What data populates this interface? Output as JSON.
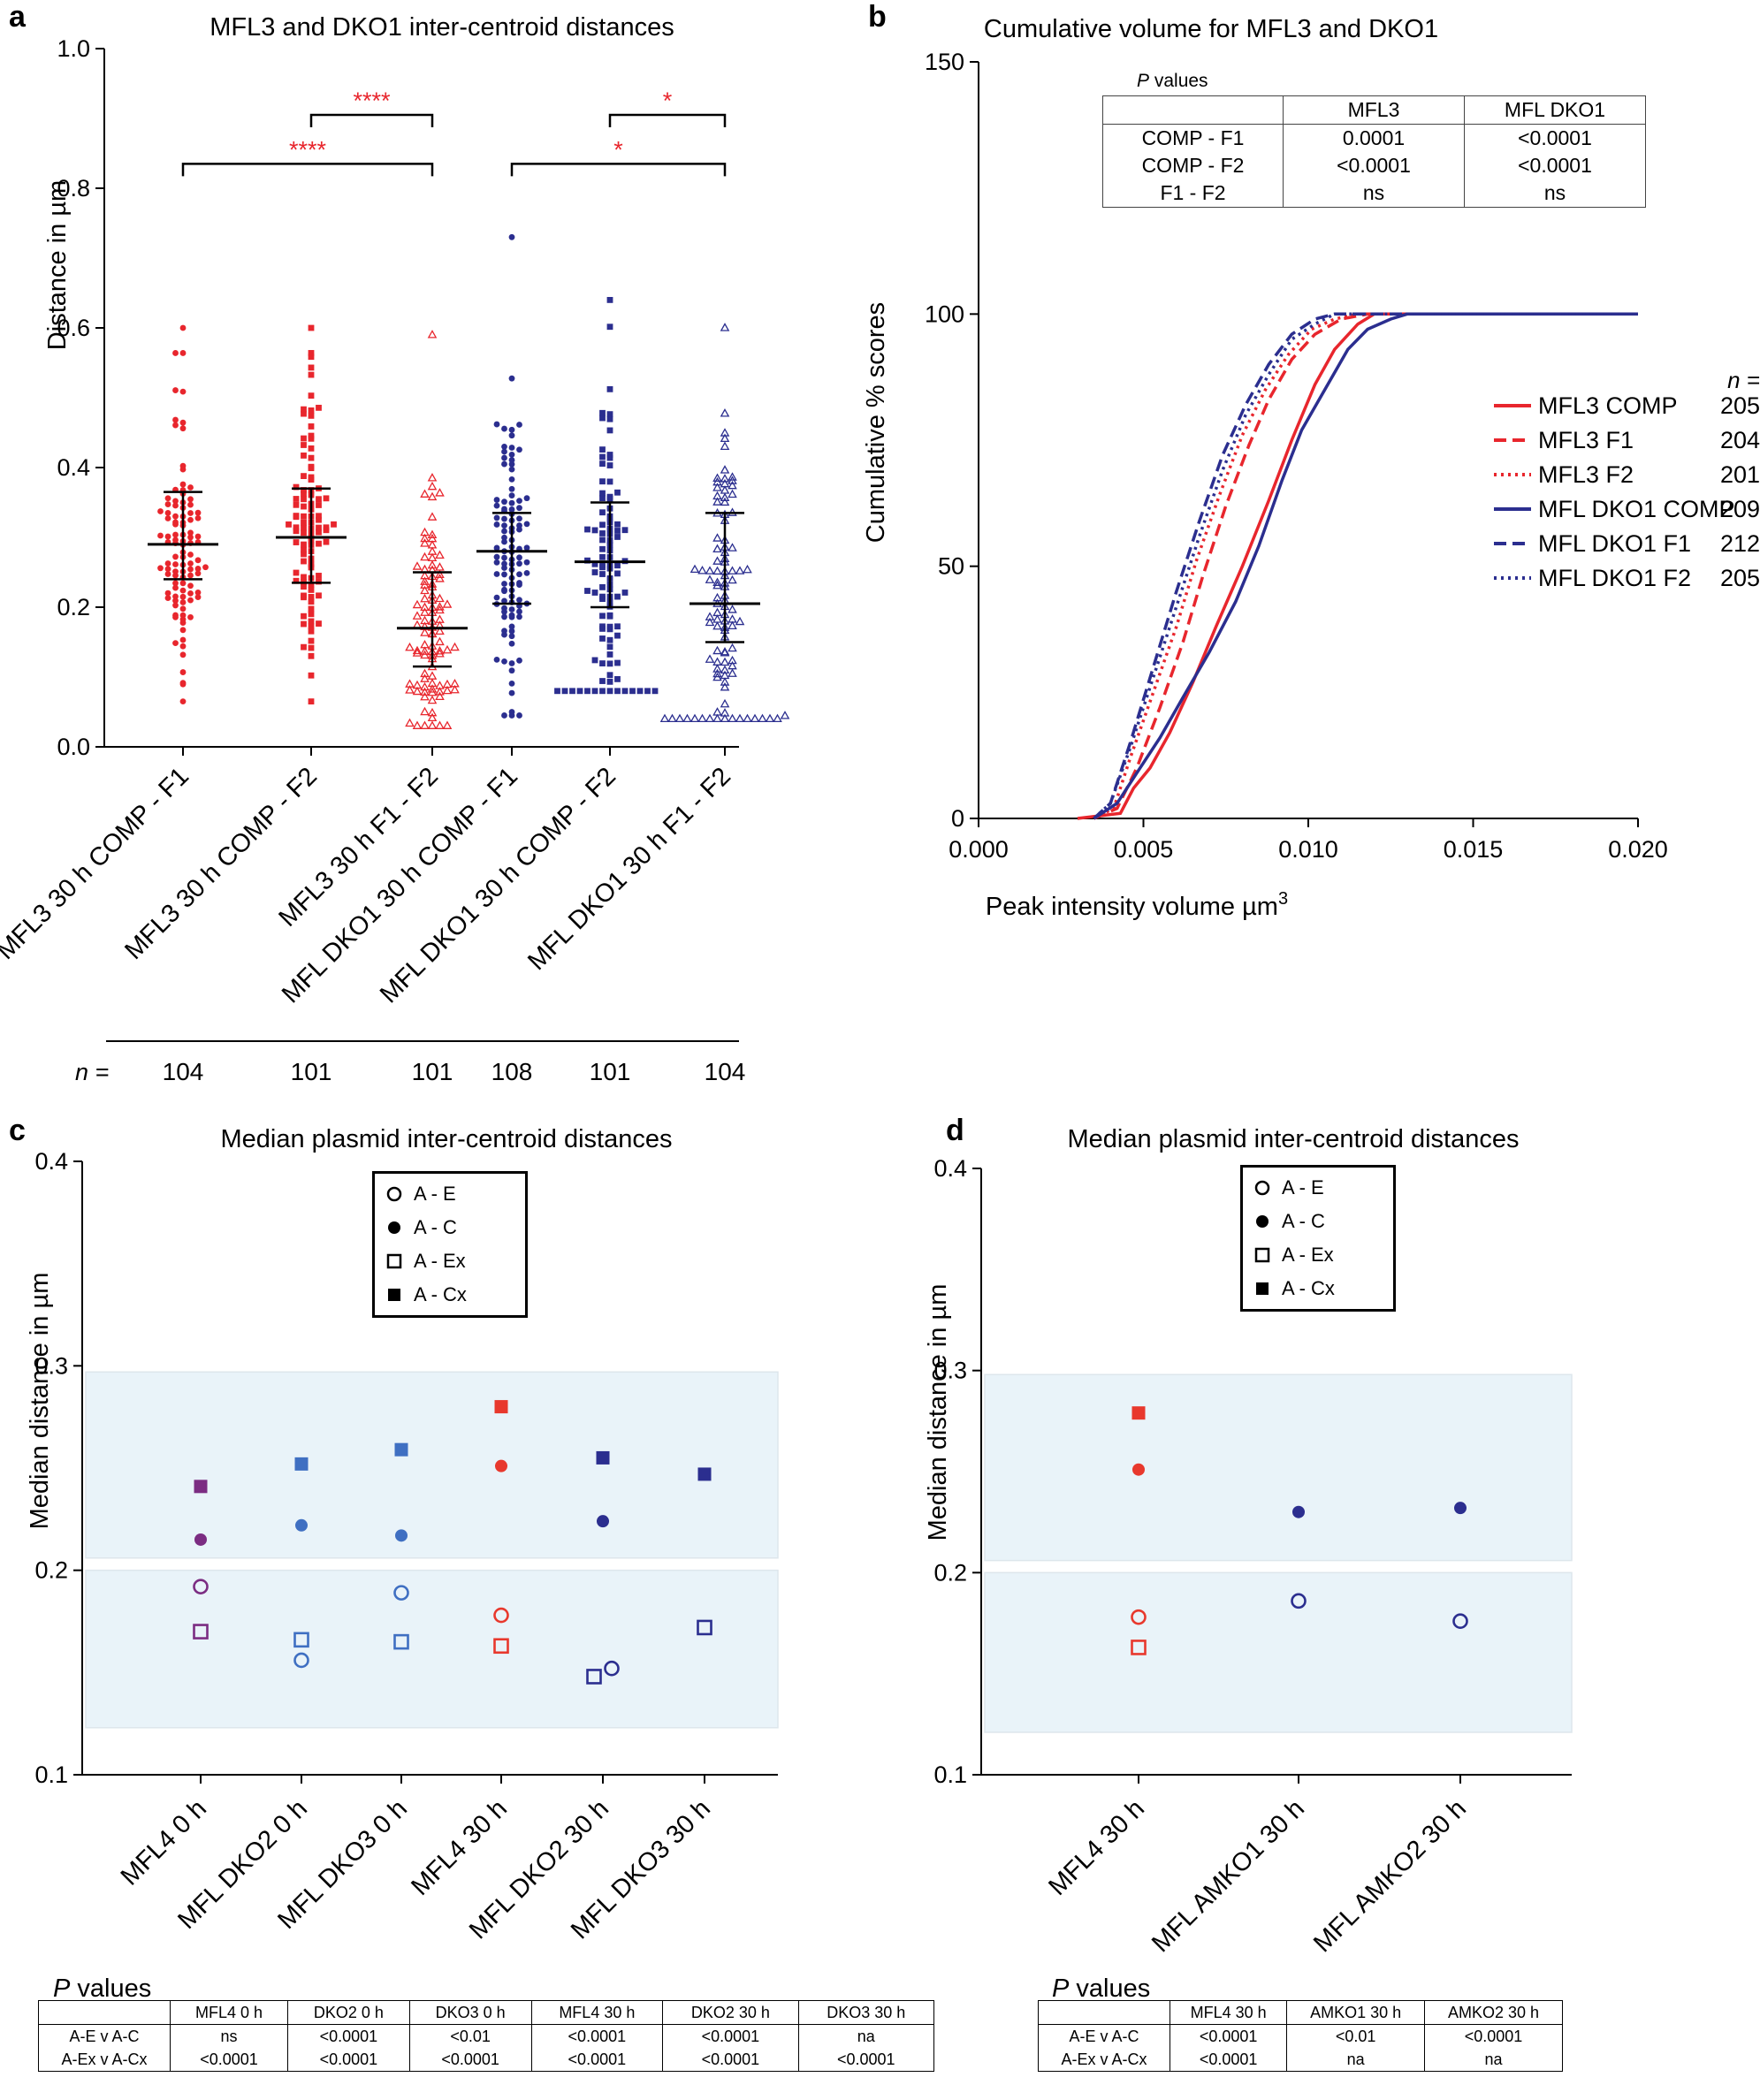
{
  "panel_a": {
    "letter": "a",
    "chart_data": {
      "type": "scatter",
      "title": "MFL3 and DKO1 inter-centroid distances",
      "ylabel": "Distance in µm",
      "ylim": [
        0.0,
        1.0
      ],
      "yticks": [
        "0.0",
        "0.2",
        "0.4",
        "0.6",
        "0.8",
        "1.0"
      ],
      "categories": [
        "MFL3 30 h COMP - F1",
        "MFL3 30 h COMP - F2",
        "MFL3 30 h F1 - F2",
        "MFL DKO1 30 h COMP - F1",
        "MFL DKO1 30 h COMP - F2",
        "MFL DKO1 30 h F1 - F2"
      ],
      "n_label": "n =",
      "n_values": [
        "104",
        "101",
        "101",
        "108",
        "101",
        "104"
      ],
      "colors": [
        "#e8262d",
        "#e8262d",
        "#e8262d",
        "#2b2e8f",
        "#2b2e8f",
        "#2b2e8f"
      ],
      "markers": [
        "circle",
        "square",
        "triangle-open",
        "circle",
        "square",
        "triangle-open"
      ],
      "stats": [
        {
          "median": 0.29,
          "q1": 0.24,
          "q3": 0.365,
          "min": 0.065,
          "max": 0.6
        },
        {
          "median": 0.3,
          "q1": 0.235,
          "q3": 0.37,
          "min": 0.065,
          "max": 0.6
        },
        {
          "median": 0.17,
          "q1": 0.115,
          "q3": 0.25,
          "min": 0.03,
          "max": 0.59
        },
        {
          "median": 0.28,
          "q1": 0.205,
          "q3": 0.335,
          "min": 0.045,
          "max": 0.73
        },
        {
          "median": 0.265,
          "q1": 0.2,
          "q3": 0.35,
          "min": 0.08,
          "max": 0.64
        },
        {
          "median": 0.205,
          "q1": 0.15,
          "q3": 0.335,
          "min": 0.04,
          "max": 0.6
        }
      ],
      "significance": [
        {
          "from": 1,
          "to": 2,
          "y": 0.905,
          "label": "****"
        },
        {
          "from": 0,
          "to": 2,
          "y": 0.835,
          "label": "****"
        },
        {
          "from": 4,
          "to": 5,
          "y": 0.905,
          "label": "*"
        },
        {
          "from": 3,
          "to": 5,
          "y": 0.835,
          "label": "*"
        }
      ]
    }
  },
  "panel_b": {
    "letter": "b",
    "chart_data": {
      "type": "line",
      "title": "Cumulative volume for MFL3 and DKO1",
      "xlabel": "Peak intensity volume µm",
      "xlabel_sup": "3",
      "ylabel": "Cumulative % scores",
      "xlim": [
        0.0,
        0.02
      ],
      "ylim": [
        0,
        150
      ],
      "xticks": [
        "0.000",
        "0.005",
        "0.010",
        "0.015",
        "0.020"
      ],
      "yticks": [
        "0",
        "50",
        "100",
        "150"
      ],
      "n_label": "n =",
      "series": [
        {
          "name": "MFL3 COMP",
          "n": "205",
          "color": "#e8262d",
          "dash": "solid",
          "x": [
            0.003,
            0.0043,
            0.0047,
            0.0052,
            0.0058,
            0.0065,
            0.0072,
            0.008,
            0.0088,
            0.0095,
            0.0102,
            0.0108,
            0.0115,
            0.012,
            0.02
          ],
          "y": [
            0,
            1,
            6,
            10,
            17,
            27,
            38,
            50,
            63,
            75,
            86,
            93,
            98,
            100,
            100
          ]
        },
        {
          "name": "MFL3 F1",
          "n": "204",
          "color": "#e8262d",
          "dash": "dash",
          "x": [
            0.0035,
            0.0042,
            0.0048,
            0.0055,
            0.0062,
            0.0068,
            0.0075,
            0.0082,
            0.0088,
            0.0095,
            0.0102,
            0.011,
            0.0118,
            0.02
          ],
          "y": [
            0,
            2,
            10,
            22,
            35,
            48,
            62,
            74,
            83,
            91,
            96,
            99,
            100,
            100
          ]
        },
        {
          "name": "MFL3 F2",
          "n": "201",
          "color": "#e8262d",
          "dash": "dot",
          "x": [
            0.0035,
            0.0041,
            0.0046,
            0.0053,
            0.006,
            0.0066,
            0.0073,
            0.008,
            0.0087,
            0.0094,
            0.0101,
            0.0108,
            0.0115,
            0.02
          ],
          "y": [
            0,
            2,
            12,
            25,
            38,
            51,
            64,
            76,
            85,
            92,
            97,
            99,
            100,
            100
          ]
        },
        {
          "name": "MFL DKO1 COMP",
          "n": "209",
          "color": "#2b2e8f",
          "dash": "solid",
          "x": [
            0.0035,
            0.0042,
            0.0048,
            0.0055,
            0.0062,
            0.007,
            0.0078,
            0.0085,
            0.0092,
            0.0098,
            0.0105,
            0.0112,
            0.0118,
            0.0125,
            0.013,
            0.02
          ],
          "y": [
            0,
            3,
            9,
            16,
            24,
            33,
            43,
            54,
            67,
            77,
            85,
            93,
            97,
            99,
            100,
            100
          ]
        },
        {
          "name": "MFL DKO1 F1",
          "n": "212",
          "color": "#2b2e8f",
          "dash": "dash",
          "x": [
            0.0035,
            0.004,
            0.0046,
            0.0053,
            0.006,
            0.0067,
            0.0074,
            0.0081,
            0.0088,
            0.0095,
            0.0102,
            0.0108,
            0.0115,
            0.02
          ],
          "y": [
            0,
            3,
            15,
            30,
            45,
            59,
            72,
            82,
            90,
            96,
            99,
            100,
            100,
            100
          ]
        },
        {
          "name": "MFL DKO1 F2",
          "n": "205",
          "color": "#2b2e8f",
          "dash": "dot",
          "x": [
            0.0035,
            0.004,
            0.0046,
            0.0053,
            0.006,
            0.0067,
            0.0074,
            0.0081,
            0.0088,
            0.0095,
            0.0102,
            0.0108,
            0.0115,
            0.02
          ],
          "y": [
            0,
            3,
            14,
            28,
            42,
            56,
            69,
            80,
            88,
            95,
            98,
            100,
            100,
            100
          ]
        }
      ]
    },
    "p_table": {
      "title": "P values",
      "title_italic": "P",
      "title_rest": " values",
      "col_headers": [
        "MFL3",
        "MFL DKO1"
      ],
      "row_labels": [
        "COMP - F1",
        "COMP - F2",
        "F1 - F2"
      ],
      "mfl3": [
        "0.0001",
        "<0.0001",
        "ns"
      ],
      "dko1": [
        "<0.0001",
        "<0.0001",
        "ns"
      ]
    }
  },
  "panel_c": {
    "letter": "c",
    "chart_data": {
      "type": "scatter",
      "title": "Median plasmid inter-centroid distances",
      "ylabel": "Median distance in µm",
      "ylim": [
        0.1,
        0.4
      ],
      "yticks": [
        "0.1",
        "0.2",
        "0.3",
        "0.4"
      ],
      "categories": [
        "MFL4 0 h",
        "MFL DKO2 0 h",
        "MFL DKO3 0 h",
        "MFL4 30 h",
        "MFL DKO2 30 h",
        "MFL DKO3 30 h"
      ],
      "colors": [
        "#7b2c82",
        "#3f6fc2",
        "#3f6fc2",
        "#e8382d",
        "#2b2e8f",
        "#2b2e8f"
      ],
      "shaded_bands": [
        [
          0.123,
          0.2
        ],
        [
          0.206,
          0.297
        ]
      ],
      "band_color": "#e9f3f9",
      "series": [
        {
          "name": "A - E",
          "marker": "circle-open",
          "values": [
            0.192,
            0.156,
            0.189,
            0.178,
            0.152,
            null
          ],
          "x_offset": [
            0,
            0,
            0,
            0,
            0.1,
            0
          ]
        },
        {
          "name": "A - C",
          "marker": "circle",
          "values": [
            0.215,
            0.222,
            0.217,
            0.251,
            0.224,
            null
          ],
          "x_offset": [
            0,
            0,
            0,
            0,
            0,
            0
          ]
        },
        {
          "name": "A - Ex",
          "marker": "square-open",
          "values": [
            0.17,
            0.166,
            0.165,
            0.163,
            0.148,
            0.172
          ],
          "x_offset": [
            0,
            0,
            0,
            0,
            -0.1,
            0
          ]
        },
        {
          "name": "A - Cx",
          "marker": "square",
          "values": [
            0.241,
            0.252,
            0.259,
            0.28,
            0.255,
            0.247
          ],
          "x_offset": [
            0,
            0,
            0,
            0,
            0,
            0
          ]
        }
      ]
    },
    "p_table": {
      "title_italic": "P",
      "title_rest": " values",
      "col_headers": [
        "MFL4 0 h",
        "DKO2 0 h",
        "DKO3 0 h",
        "MFL4 30 h",
        "DKO2 30 h",
        "DKO3 30 h"
      ],
      "row_labels": [
        "A-E v A-C",
        "A-Ex v A-Cx"
      ],
      "row1": [
        "ns",
        "<0.0001",
        "<0.01",
        "<0.0001",
        "<0.0001",
        "na"
      ],
      "row2": [
        "<0.0001",
        "<0.0001",
        "<0.0001",
        "<0.0001",
        "<0.0001",
        "<0.0001"
      ]
    }
  },
  "panel_d": {
    "letter": "d",
    "chart_data": {
      "type": "scatter",
      "title": "Median plasmid inter-centroid distances",
      "ylabel": "Median distance in µm",
      "ylim": [
        0.1,
        0.4
      ],
      "yticks": [
        "0.1",
        "0.2",
        "0.3",
        "0.4"
      ],
      "categories": [
        "MFL4 30 h",
        "MFL AMKO1 30 h",
        "MFL AMKO2 30 h"
      ],
      "colors": [
        "#e8382d",
        "#2b2e8f",
        "#2b2e8f"
      ],
      "shaded_bands": [
        [
          0.121,
          0.2
        ],
        [
          0.206,
          0.298
        ]
      ],
      "band_color": "#e9f3f9",
      "series": [
        {
          "name": "A - E",
          "marker": "circle-open",
          "values": [
            0.178,
            0.186,
            0.176
          ]
        },
        {
          "name": "A - C",
          "marker": "circle",
          "values": [
            0.251,
            0.23,
            0.232
          ]
        },
        {
          "name": "A - Ex",
          "marker": "square-open",
          "values": [
            0.163,
            null,
            null
          ]
        },
        {
          "name": "A - Cx",
          "marker": "square",
          "values": [
            0.279,
            null,
            null
          ]
        }
      ]
    },
    "p_table": {
      "title_italic": "P",
      "title_rest": " values",
      "col_headers": [
        "MFL4 30 h",
        "AMKO1 30 h",
        "AMKO2 30 h"
      ],
      "row_labels": [
        "A-E v A-C",
        "A-Ex v A-Cx"
      ],
      "row1": [
        "<0.0001",
        "<0.01",
        "<0.0001"
      ],
      "row2": [
        "<0.0001",
        "na",
        "na"
      ]
    }
  },
  "legend_cd": [
    "A - E",
    "A - C",
    "A - Ex",
    "A - Cx"
  ]
}
